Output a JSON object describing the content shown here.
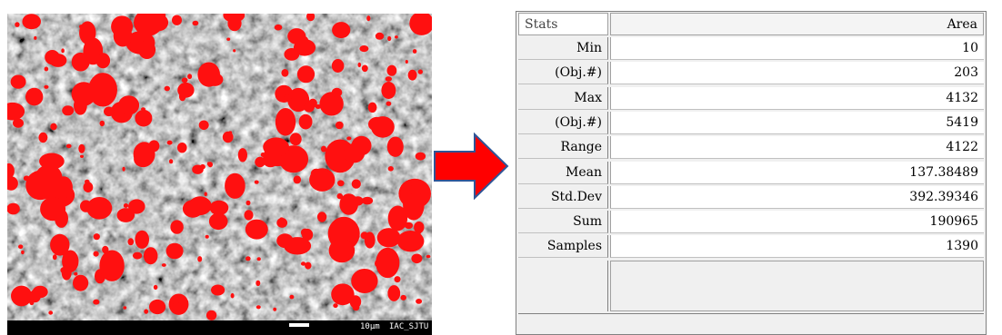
{
  "image": {
    "scale_bar": "10μm",
    "label": "IAC_SJTU"
  },
  "table": {
    "header": [
      "Stats",
      "Area"
    ],
    "rows": [
      [
        "Min",
        "10"
      ],
      [
        "(Obj.#)",
        "203"
      ],
      [
        "Max",
        "4132"
      ],
      [
        "(Obj.#)",
        "5419"
      ],
      [
        "Range",
        "4122"
      ],
      [
        "Mean",
        "137.38489"
      ],
      [
        "Std.Dev",
        "392.39346"
      ],
      [
        "Sum",
        "190965"
      ],
      [
        "Samples",
        "1390"
      ]
    ]
  }
}
